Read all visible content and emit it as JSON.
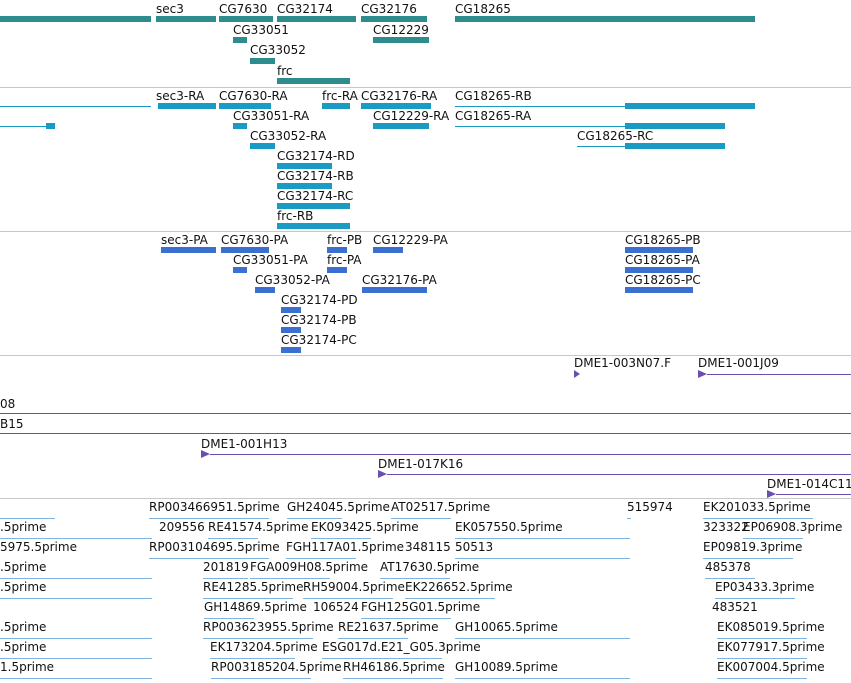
{
  "colors": {
    "gene": "#2f8c8c",
    "transcript": "#1a9bc4",
    "protein": "#3b6fd0",
    "clone": "#6b4fb0",
    "est": "#7fb4e0",
    "separator": "#c8c8c8"
  },
  "tracks": {
    "genes": {
      "items": [
        {
          "label": "sec3"
        },
        {
          "label": "CG7630"
        },
        {
          "label": "CG32174"
        },
        {
          "label": "CG32176"
        },
        {
          "label": "CG18265"
        },
        {
          "label": "CG33051"
        },
        {
          "label": "CG12229"
        },
        {
          "label": "CG33052"
        },
        {
          "label": "frc"
        }
      ]
    },
    "transcripts": {
      "items": [
        {
          "label": "sec3-RA"
        },
        {
          "label": "CG7630-RA"
        },
        {
          "label": "frc-RA"
        },
        {
          "label": "CG32176-RA"
        },
        {
          "label": "CG18265-RB"
        },
        {
          "label": "CG33051-RA"
        },
        {
          "label": "CG12229-RA"
        },
        {
          "label": "CG18265-RA"
        },
        {
          "label": "CG33052-RA"
        },
        {
          "label": "CG18265-RC"
        },
        {
          "label": "CG32174-RD"
        },
        {
          "label": "CG32174-RB"
        },
        {
          "label": "CG32174-RC"
        },
        {
          "label": "frc-RB"
        }
      ]
    },
    "proteins": {
      "items": [
        {
          "label": "sec3-PA"
        },
        {
          "label": "CG7630-PA"
        },
        {
          "label": "frc-PB"
        },
        {
          "label": "CG12229-PA"
        },
        {
          "label": "CG18265-PB"
        },
        {
          "label": "CG33051-PA"
        },
        {
          "label": "frc-PA"
        },
        {
          "label": "CG18265-PA"
        },
        {
          "label": "CG33052-PA"
        },
        {
          "label": "CG32176-PA"
        },
        {
          "label": "CG18265-PC"
        },
        {
          "label": "CG32174-PD"
        },
        {
          "label": "CG32174-PB"
        },
        {
          "label": "CG32174-PC"
        }
      ]
    },
    "clones": {
      "items": [
        {
          "label": "DME1-003N07.F"
        },
        {
          "label": "DME1-001J09"
        },
        {
          "label": "08"
        },
        {
          "label": "B15"
        },
        {
          "label": "DME1-001H13"
        },
        {
          "label": "DME1-017K16"
        },
        {
          "label": "DME1-014C11"
        }
      ]
    },
    "ests": {
      "items": [
        {
          "label": "RP003466951.5prime"
        },
        {
          "label": "GH24045.5prime"
        },
        {
          "label": "AT02517.5prime"
        },
        {
          "label": "515974"
        },
        {
          "label": "EK201033.5prime"
        },
        {
          "label": ".5prime"
        },
        {
          "label": "209556"
        },
        {
          "label": "RE41574.5prime"
        },
        {
          "label": "EK093425.5prime"
        },
        {
          "label": "EK057550.5prime"
        },
        {
          "label": "323322"
        },
        {
          "label": "EP06908.3prime"
        },
        {
          "label": "5975.5prime"
        },
        {
          "label": "RP003104695.5prime"
        },
        {
          "label": "FGH117A01.5prime"
        },
        {
          "label": "348115"
        },
        {
          "label": "50513"
        },
        {
          "label": "EP09819.3prime"
        },
        {
          "label": ".5prime"
        },
        {
          "label": "201819"
        },
        {
          "label": "FGA009H08.5prime"
        },
        {
          "label": "AT17630.5prime"
        },
        {
          "label": "485378"
        },
        {
          "label": ".5prime"
        },
        {
          "label": "RE41285.5prime"
        },
        {
          "label": "RH59004.5prime"
        },
        {
          "label": "EK226652.5prime"
        },
        {
          "label": "EP03433.3prime"
        },
        {
          "label": "GH14869.5prime"
        },
        {
          "label": "106524"
        },
        {
          "label": "FGH125G01.5prime"
        },
        {
          "label": "483521"
        },
        {
          "label": ".5prime"
        },
        {
          "label": "RP003623955.5prime"
        },
        {
          "label": "RE21637.5prime"
        },
        {
          "label": "GH10065.5prime"
        },
        {
          "label": "EK085019.5prime"
        },
        {
          "label": ".5prime"
        },
        {
          "label": "EK173204.5prime"
        },
        {
          "label": "ESG017d.E21_G05.3prime"
        },
        {
          "label": "EK077917.5prime"
        },
        {
          "label": "1.5prime"
        },
        {
          "label": "RP003185204.5prime"
        },
        {
          "label": "RH46186.5prime"
        },
        {
          "label": "GH10089.5prime"
        },
        {
          "label": "EK007004.5prime"
        }
      ]
    }
  }
}
